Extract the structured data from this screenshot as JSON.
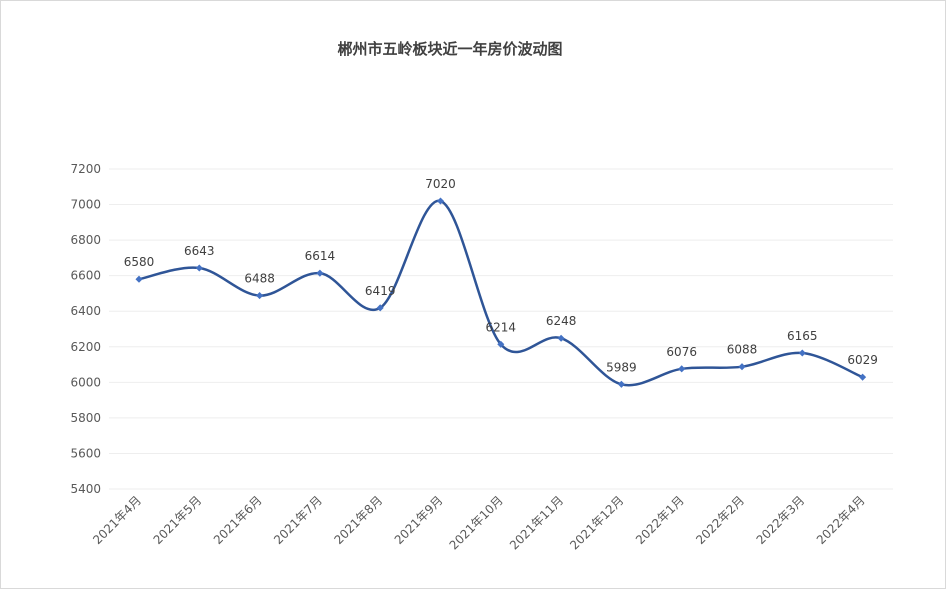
{
  "chart_data": {
    "type": "line",
    "title": "郴州市五岭板块近一年房价波动图",
    "categories": [
      "2021年4月",
      "2021年5月",
      "2021年6月",
      "2021年7月",
      "2021年8月",
      "2021年9月",
      "2021年10月",
      "2021年11月",
      "2021年12月",
      "2022年1月",
      "2022年2月",
      "2022年3月",
      "2022年4月"
    ],
    "series": [
      {
        "values": [
          6580,
          6643,
          6488,
          6614,
          6419,
          7020,
          6214,
          6248,
          5989,
          6076,
          6088,
          6165,
          6029
        ]
      }
    ],
    "ylim": [
      5400,
      7200
    ],
    "yticks": [
      7200,
      7000,
      6800,
      6600,
      6400,
      6200,
      6000,
      5800,
      5600,
      5400
    ],
    "grid": true,
    "smooth": true,
    "line_color": "#2f5597",
    "marker_color": "#4472c4",
    "data_labels": true
  }
}
